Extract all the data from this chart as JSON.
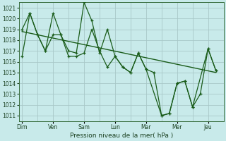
{
  "title": "",
  "xlabel": "Pression niveau de la mer( hPa )",
  "bg_color": "#c8eaea",
  "grid_color": "#a8c8c8",
  "line_color": "#1a5c1a",
  "ylim": [
    1010.5,
    1021.5
  ],
  "yticks": [
    1011,
    1012,
    1013,
    1014,
    1015,
    1016,
    1017,
    1018,
    1019,
    1020,
    1021
  ],
  "x_labels": [
    "Dim",
    "Ven",
    "Sam",
    "Lun",
    "Mar",
    "Mer",
    "Jeu"
  ],
  "tick_fontsize": 5.5,
  "xlabel_fontsize": 6.5,
  "series1_x": [
    0,
    0.5,
    1.0,
    1.5,
    2.0,
    2.5,
    3.0,
    3.5,
    4.0,
    4.5,
    5.0,
    5.5,
    6.0,
    6.5,
    7.0,
    7.5,
    8.0,
    9.0,
    9.5,
    10.0,
    10.5,
    11.0,
    12.0,
    12.5
  ],
  "series1_y": [
    1019.0,
    1020.5,
    1018.5,
    1017.0,
    1020.5,
    1018.5,
    1017.0,
    1016.8,
    1021.5,
    1019.8,
    1016.8,
    1019.0,
    1016.5,
    1015.5,
    1015.0,
    1016.8,
    1015.3,
    1011.0,
    1011.2,
    1014.0,
    1014.2,
    1011.8,
    1017.2,
    1015.2
  ],
  "series2_x": [
    0,
    0.5,
    1.0,
    1.5,
    2.0,
    2.5,
    3.0,
    3.5,
    4.0,
    4.5,
    5.0,
    5.5,
    6.0,
    6.5,
    7.0,
    7.5,
    8.0,
    8.5,
    9.0,
    9.5,
    10.0,
    10.5,
    11.0,
    11.5,
    12.0,
    12.5
  ],
  "series2_y": [
    1016.5,
    1020.5,
    1018.5,
    1017.0,
    1018.5,
    1018.5,
    1016.5,
    1016.5,
    1016.8,
    1019.0,
    1017.0,
    1015.5,
    1016.5,
    1015.5,
    1015.0,
    1016.8,
    1015.3,
    1015.0,
    1011.0,
    1011.2,
    1014.0,
    1014.2,
    1011.8,
    1013.0,
    1017.2,
    1015.2
  ],
  "trend_x": [
    0,
    12.5
  ],
  "trend_y": [
    1018.8,
    1015.0
  ],
  "xlim": [
    -0.2,
    13.0
  ],
  "x_tick_positions": [
    0,
    2,
    4,
    6,
    8,
    10,
    12
  ],
  "x_minor_tick_positions": [
    1,
    3,
    5,
    7,
    9,
    11
  ]
}
